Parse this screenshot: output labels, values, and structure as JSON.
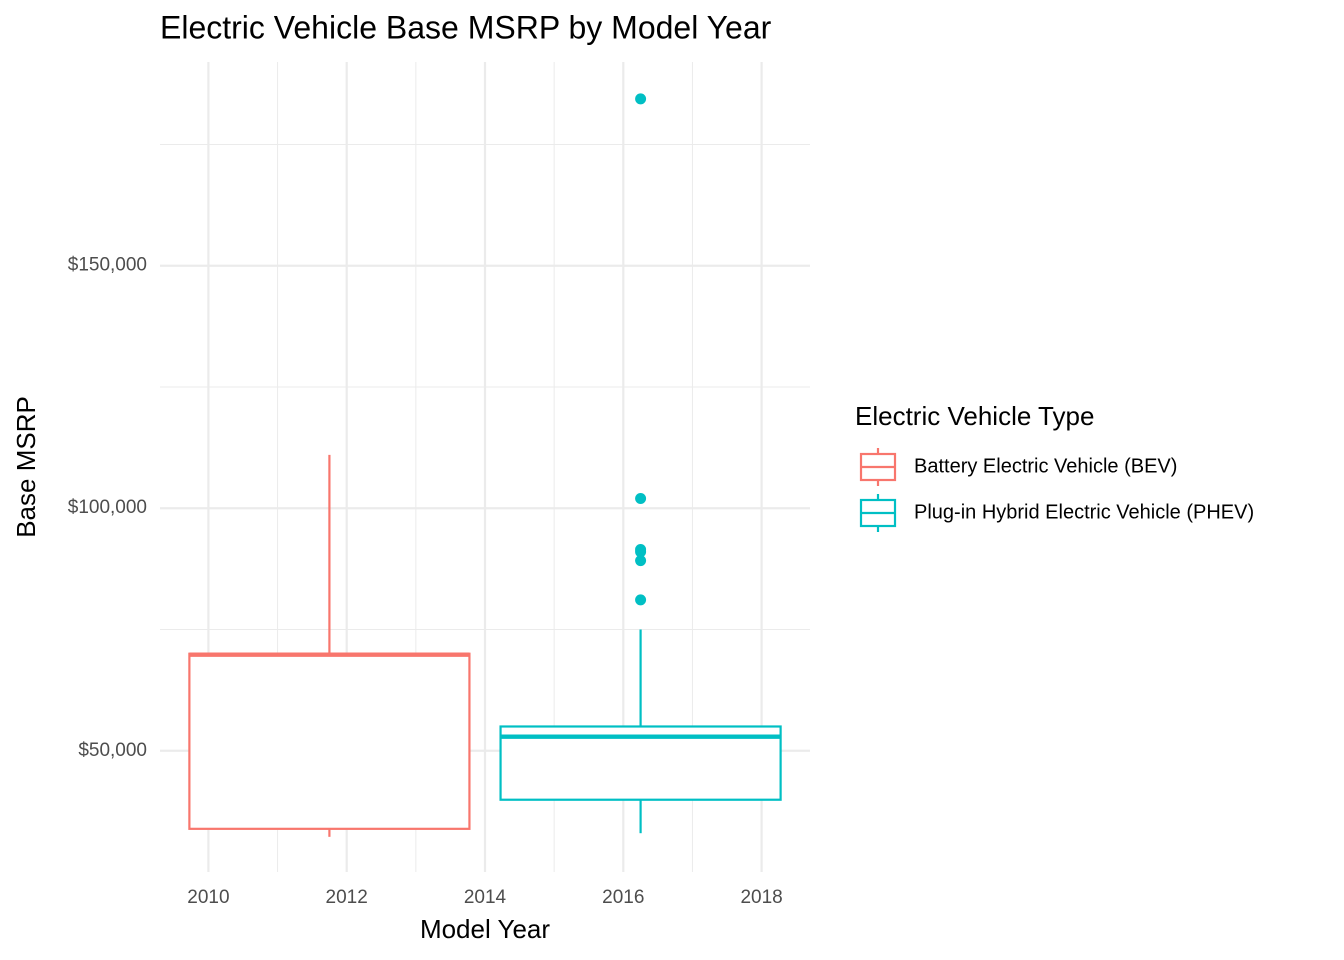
{
  "chart_data": {
    "type": "boxplot",
    "title": "Electric Vehicle Base MSRP by Model Year",
    "x_label": "Model Year",
    "y_label": "Base MSRP",
    "xlim": [
      2009.3,
      2018.7
    ],
    "xticks": [
      2010,
      2012,
      2014,
      2016,
      2018
    ],
    "ylim": [
      25000,
      192000
    ],
    "yticks": [
      {
        "value": 50000,
        "label": "$50,000"
      },
      {
        "value": 100000,
        "label": "$100,000"
      },
      {
        "value": 150000,
        "label": "$150,000"
      }
    ],
    "grid": true,
    "legend_title": "Electric Vehicle Type",
    "legend_position": "right",
    "series": [
      {
        "name": "Battery Electric Vehicle (BEV)",
        "color": "#f8766d",
        "x": 2011.75,
        "whisker_low": 32250,
        "q1": 33900,
        "median": 69800,
        "q3": 70000,
        "whisker_high": 111000
      },
      {
        "name": "Plug-in Hybrid Electric Vehicle (PHEV)",
        "color": "#00bfc4",
        "x": 2016.25,
        "whisker_low": 33000,
        "q1": 39900,
        "median": 52900,
        "q3": 55000,
        "whisker_high": 75000,
        "outliers": [
          184400,
          102000,
          91500,
          91000,
          89200,
          81100
        ]
      }
    ]
  }
}
